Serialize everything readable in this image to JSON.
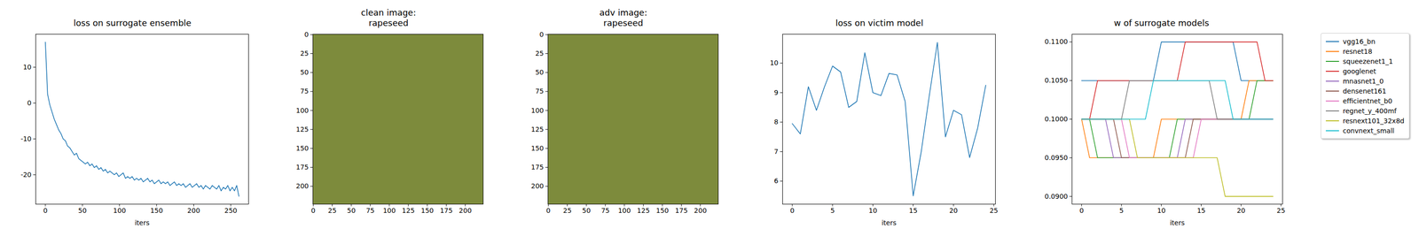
{
  "chart_data": [
    {
      "type": "line",
      "title": "loss on surrogate ensemble",
      "x_label": "iters",
      "color": "#1f77b4",
      "x": [
        0,
        3,
        6,
        9,
        12,
        15,
        18,
        21,
        24,
        27,
        30,
        33,
        36,
        39,
        42,
        45,
        48,
        51,
        54,
        57,
        60,
        63,
        66,
        69,
        72,
        75,
        78,
        81,
        84,
        87,
        90,
        93,
        96,
        99,
        102,
        105,
        108,
        111,
        114,
        117,
        120,
        123,
        126,
        129,
        132,
        135,
        138,
        141,
        144,
        147,
        150,
        153,
        156,
        159,
        162,
        165,
        168,
        171,
        174,
        177,
        180,
        183,
        186,
        189,
        192,
        195,
        198,
        201,
        204,
        207,
        210,
        213,
        216,
        219,
        222,
        225,
        228,
        231,
        234,
        237,
        240,
        243,
        246,
        249,
        252,
        255,
        258,
        261
      ],
      "values": [
        17,
        2.5,
        -0.5,
        -2.5,
        -4.5,
        -6,
        -7.5,
        -8.5,
        -10,
        -10.5,
        -12,
        -12.5,
        -13.5,
        -14.5,
        -14,
        -15.5,
        -16,
        -16.5,
        -17,
        -16.5,
        -17.5,
        -17,
        -18,
        -17.5,
        -18.5,
        -18,
        -19,
        -18.5,
        -19.5,
        -19,
        -19.5,
        -20,
        -19.5,
        -20.5,
        -20,
        -19.5,
        -21,
        -20.5,
        -21,
        -20.5,
        -21.5,
        -21,
        -21.5,
        -21,
        -22,
        -21.5,
        -21,
        -22,
        -21.5,
        -22.5,
        -22,
        -21.5,
        -22.5,
        -22,
        -22.5,
        -22,
        -23,
        -22.5,
        -22,
        -23,
        -22.5,
        -23,
        -22.5,
        -23.5,
        -23,
        -22.5,
        -23.5,
        -23,
        -22.5,
        -23.5,
        -23,
        -24,
        -23,
        -23.5,
        -24,
        -23,
        -23.5,
        -24,
        -23,
        -24.5,
        -23.5,
        -24,
        -23,
        -24.5,
        -23.5,
        -24.5,
        -23,
        -26
      ],
      "xlim": [
        -13,
        274
      ],
      "ylim": [
        -28.2,
        19.2
      ],
      "xticks": [
        0,
        50,
        100,
        150,
        200,
        250
      ],
      "yticks": [
        -20,
        -10,
        0,
        10
      ],
      "grid": false
    },
    {
      "type": "image",
      "title": "clean image:\nrapeseed",
      "xlim": [
        -0.5,
        223.5
      ],
      "ylim": [
        223.5,
        -0.5
      ],
      "xticks": [
        0,
        25,
        50,
        75,
        100,
        125,
        150,
        175,
        200
      ],
      "yticks": [
        0,
        25,
        50,
        75,
        100,
        125,
        150,
        175,
        200
      ],
      "grid": false
    },
    {
      "type": "image",
      "title": "adv image:\nrapeseed",
      "xlim": [
        -0.5,
        223.5
      ],
      "ylim": [
        223.5,
        -0.5
      ],
      "xticks": [
        0,
        25,
        50,
        75,
        100,
        125,
        150,
        175,
        200
      ],
      "yticks": [
        0,
        25,
        50,
        75,
        100,
        125,
        150,
        175,
        200
      ],
      "grid": false
    },
    {
      "type": "line",
      "title": "loss on victim model",
      "x_label": "iters",
      "color": "#1f77b4",
      "x": [
        0,
        1,
        2,
        3,
        4,
        5,
        6,
        7,
        8,
        9,
        10,
        11,
        12,
        13,
        14,
        15,
        16,
        17,
        18,
        19,
        20,
        21,
        22,
        23,
        24
      ],
      "values": [
        7.95,
        7.6,
        9.2,
        8.4,
        9.2,
        9.9,
        9.7,
        8.5,
        8.7,
        10.35,
        9.0,
        8.9,
        9.65,
        9.6,
        8.7,
        5.5,
        7.0,
        8.9,
        10.7,
        7.5,
        8.4,
        8.25,
        6.8,
        7.8,
        9.25
      ],
      "xlim": [
        -1.2,
        25.2
      ],
      "ylim": [
        5.22,
        10.98
      ],
      "xticks": [
        0,
        5,
        10,
        15,
        20,
        25
      ],
      "yticks": [
        6,
        7,
        8,
        9,
        10
      ],
      "grid": false
    },
    {
      "type": "line",
      "title": "w of surrogate models",
      "x_label": "iters",
      "legend": "right",
      "x": [
        0,
        1,
        2,
        3,
        4,
        5,
        6,
        7,
        8,
        9,
        10,
        11,
        12,
        13,
        14,
        15,
        16,
        17,
        18,
        19,
        20,
        21,
        22,
        23,
        24
      ],
      "series": [
        {
          "name": "vgg16_bn",
          "color": "#1f77b4",
          "values": [
            0.105,
            0.105,
            0.105,
            0.105,
            0.105,
            0.105,
            0.105,
            0.105,
            0.105,
            0.105,
            0.11,
            0.11,
            0.11,
            0.11,
            0.11,
            0.11,
            0.11,
            0.11,
            0.11,
            0.11,
            0.105,
            0.105,
            0.105,
            0.105,
            0.105
          ]
        },
        {
          "name": "resnet18",
          "color": "#ff7f0e",
          "values": [
            0.1,
            0.095,
            0.095,
            0.095,
            0.095,
            0.095,
            0.095,
            0.095,
            0.095,
            0.095,
            0.1,
            0.1,
            0.1,
            0.1,
            0.1,
            0.1,
            0.1,
            0.1,
            0.1,
            0.1,
            0.1,
            0.105,
            0.105,
            0.105,
            0.105
          ]
        },
        {
          "name": "squeezenet1_1",
          "color": "#2ca02c",
          "values": [
            0.1,
            0.1,
            0.095,
            0.095,
            0.095,
            0.095,
            0.095,
            0.095,
            0.095,
            0.095,
            0.095,
            0.095,
            0.1,
            0.1,
            0.1,
            0.1,
            0.1,
            0.1,
            0.1,
            0.1,
            0.1,
            0.1,
            0.105,
            0.105,
            0.105
          ]
        },
        {
          "name": "googlenet",
          "color": "#d62728",
          "values": [
            0.1,
            0.1,
            0.105,
            0.105,
            0.105,
            0.105,
            0.105,
            0.105,
            0.105,
            0.105,
            0.105,
            0.105,
            0.105,
            0.11,
            0.11,
            0.11,
            0.11,
            0.11,
            0.11,
            0.11,
            0.11,
            0.11,
            0.11,
            0.105,
            0.105
          ]
        },
        {
          "name": "mnasnet1_0",
          "color": "#9467bd",
          "values": [
            0.1,
            0.1,
            0.1,
            0.1,
            0.095,
            0.095,
            0.095,
            0.095,
            0.095,
            0.095,
            0.095,
            0.095,
            0.095,
            0.1,
            0.1,
            0.1,
            0.1,
            0.1,
            0.1,
            0.1,
            0.1,
            0.1,
            0.1,
            0.1,
            0.1
          ]
        },
        {
          "name": "densenet161",
          "color": "#8c564b",
          "values": [
            0.1,
            0.1,
            0.1,
            0.1,
            0.1,
            0.095,
            0.095,
            0.095,
            0.095,
            0.095,
            0.095,
            0.095,
            0.095,
            0.095,
            0.1,
            0.1,
            0.1,
            0.1,
            0.1,
            0.1,
            0.1,
            0.1,
            0.1,
            0.1,
            0.1
          ]
        },
        {
          "name": "efficientnet_b0",
          "color": "#e377c2",
          "values": [
            0.1,
            0.1,
            0.1,
            0.1,
            0.1,
            0.1,
            0.095,
            0.095,
            0.095,
            0.095,
            0.095,
            0.095,
            0.095,
            0.095,
            0.095,
            0.1,
            0.1,
            0.1,
            0.1,
            0.1,
            0.1,
            0.1,
            0.1,
            0.1,
            0.1
          ]
        },
        {
          "name": "regnet_y_400mf",
          "color": "#7f7f7f",
          "values": [
            0.1,
            0.1,
            0.1,
            0.1,
            0.1,
            0.1,
            0.105,
            0.105,
            0.105,
            0.105,
            0.105,
            0.105,
            0.105,
            0.105,
            0.105,
            0.105,
            0.105,
            0.1,
            0.1,
            0.1,
            0.1,
            0.1,
            0.1,
            0.1,
            0.1
          ]
        },
        {
          "name": "resnext101_32x8d",
          "color": "#bcbd22",
          "values": [
            0.1,
            0.1,
            0.1,
            0.1,
            0.1,
            0.1,
            0.1,
            0.095,
            0.095,
            0.095,
            0.095,
            0.095,
            0.095,
            0.095,
            0.095,
            0.095,
            0.095,
            0.095,
            0.09,
            0.09,
            0.09,
            0.09,
            0.09,
            0.09,
            0.09
          ]
        },
        {
          "name": "convnext_small",
          "color": "#17becf",
          "values": [
            0.1,
            0.1,
            0.1,
            0.1,
            0.1,
            0.1,
            0.1,
            0.1,
            0.1,
            0.105,
            0.105,
            0.105,
            0.105,
            0.105,
            0.105,
            0.105,
            0.105,
            0.105,
            0.105,
            0.1,
            0.1,
            0.1,
            0.1,
            0.1,
            0.1
          ]
        }
      ],
      "xlim": [
        -1.2,
        25.2
      ],
      "ylim": [
        0.089,
        0.111
      ],
      "xticks": [
        0,
        5,
        10,
        15,
        20,
        25
      ],
      "yticks": [
        {
          "value": 0.09,
          "label": "0.0900"
        },
        {
          "value": 0.095,
          "label": "0.0950"
        },
        {
          "value": 0.1,
          "label": "0.1000"
        },
        {
          "value": 0.105,
          "label": "0.1050"
        },
        {
          "value": 0.11,
          "label": "0.1100"
        }
      ],
      "grid": false
    }
  ]
}
